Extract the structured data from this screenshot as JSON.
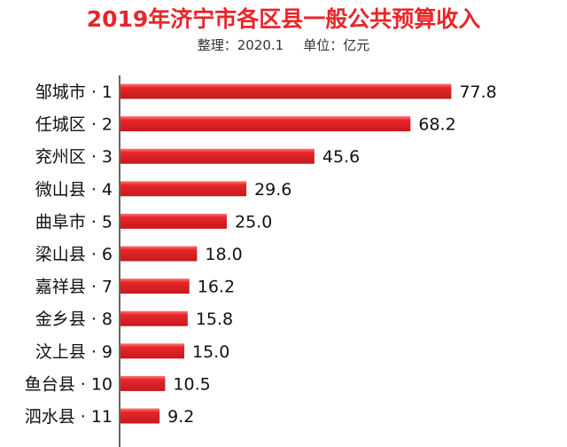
{
  "page": {
    "title": "2019年济宁市各区县一般公共预算收入",
    "subtitle_left": "整理：2020.1",
    "subtitle_right": "单位：亿元"
  },
  "colors": {
    "title": "#e8262a",
    "bar": "#e8262a",
    "bar_highlight": "#ff7a7a",
    "axis": "#333333",
    "text": "#111111"
  },
  "chart_data": {
    "type": "bar",
    "orientation": "horizontal",
    "title": "2019年济宁市各区县一般公共预算收入",
    "categories": [
      "邹城市 · 1",
      "任城区 · 2",
      "兖州区 · 3",
      "微山县 · 4",
      "曲阜市 · 5",
      "梁山县 · 6",
      "嘉祥县 · 7",
      "金乡县 · 8",
      "汶上县 · 9",
      "鱼台县 · 10",
      "泗水县 · 11"
    ],
    "values": [
      77.8,
      68.2,
      45.6,
      29.6,
      25.0,
      18.0,
      16.2,
      15.8,
      15.0,
      10.5,
      9.2
    ],
    "value_labels": [
      "77.8",
      "68.2",
      "45.6",
      "29.6",
      "25.0",
      "18.0",
      "16.2",
      "15.8",
      "15.0",
      "10.5",
      "9.2"
    ],
    "xlim": [
      0,
      100
    ],
    "grid": false,
    "legend": "none"
  }
}
